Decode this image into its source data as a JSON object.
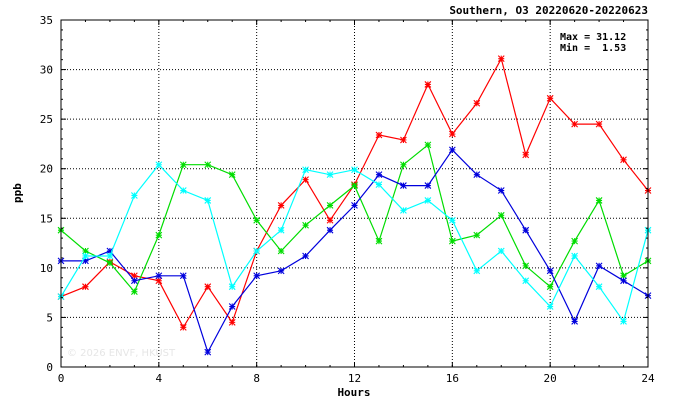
{
  "chart_data": {
    "type": "line",
    "title": "Southern, O3 20220620-20220623",
    "xlabel": "Hours",
    "ylabel": "ppb",
    "xlim": [
      0,
      24
    ],
    "ylim": [
      0,
      35
    ],
    "x_ticks": [
      "0",
      "4",
      "8",
      "12",
      "16",
      "20",
      "24"
    ],
    "y_ticks": [
      "0",
      "5",
      "10",
      "15",
      "20",
      "25",
      "30",
      "35"
    ],
    "grid": true,
    "stats": {
      "max": "Max = 31.12",
      "min": "Min =  1.53"
    },
    "watermark": "© 2026  ENVF, HKUST",
    "x": [
      0,
      1,
      2,
      3,
      4,
      5,
      6,
      7,
      8,
      9,
      10,
      11,
      12,
      13,
      14,
      15,
      16,
      17,
      18,
      19,
      20,
      21,
      22,
      23,
      24
    ],
    "series": [
      {
        "color": "#ff0000",
        "values": [
          7.1,
          8.1,
          10.6,
          9.2,
          8.7,
          4.0,
          8.1,
          4.5,
          11.7,
          16.3,
          18.9,
          14.8,
          18.4,
          23.4,
          22.9,
          28.5,
          23.5,
          26.6,
          31.1,
          21.4,
          27.1,
          24.5,
          24.5,
          20.9,
          17.8
        ]
      },
      {
        "color": "#00dd00",
        "values": [
          13.8,
          11.7,
          10.5,
          7.6,
          13.3,
          20.4,
          20.4,
          19.4,
          14.8,
          11.7,
          14.3,
          16.3,
          18.3,
          12.7,
          20.4,
          22.4,
          12.7,
          13.3,
          15.3,
          10.2,
          8.1,
          12.7,
          16.8,
          9.2,
          10.7
        ]
      },
      {
        "color": "#0000dd",
        "values": [
          10.7,
          10.7,
          11.7,
          8.7,
          9.2,
          9.2,
          1.5,
          6.1,
          9.2,
          9.7,
          11.2,
          13.8,
          16.3,
          19.4,
          18.3,
          18.3,
          21.9,
          19.4,
          17.8,
          13.8,
          9.7,
          4.6,
          10.2,
          8.7,
          7.2
        ]
      },
      {
        "color": "#00ffff",
        "values": [
          7.1,
          11.2,
          11.2,
          17.3,
          20.4,
          17.8,
          16.8,
          8.1,
          11.7,
          13.8,
          19.9,
          19.4,
          19.9,
          18.4,
          15.8,
          16.8,
          14.8,
          9.7,
          11.7,
          8.7,
          6.1,
          11.2,
          8.1,
          4.6,
          13.8
        ]
      }
    ]
  }
}
